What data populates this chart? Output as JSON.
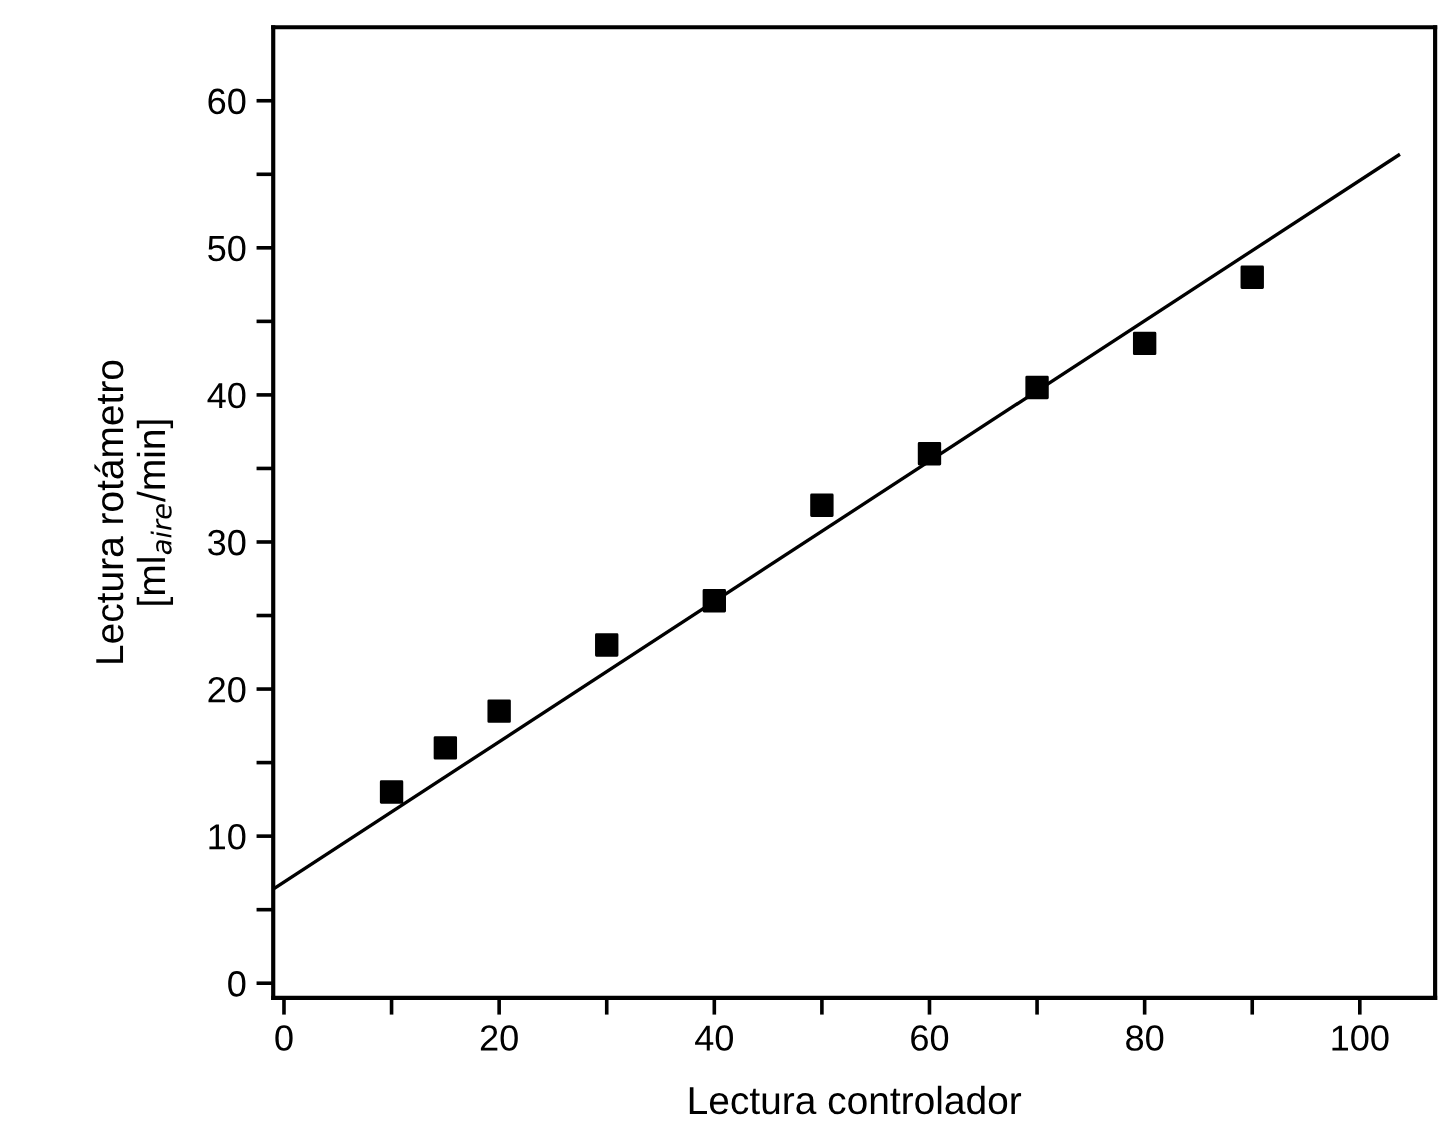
{
  "chart_data": {
    "type": "scatter",
    "xlabel": "Lectura controlador",
    "ylabel": "Lectura rotámetro\n[ml$_{aire}$/min]",
    "xlim": [
      -1,
      107
    ],
    "ylim": [
      -1,
      65
    ],
    "xticks": [
      0,
      {
        "value": 10,
        "label": null
      },
      20,
      {
        "value": 30,
        "label": null
      },
      40,
      {
        "value": 50,
        "label": null
      },
      60,
      {
        "value": 70,
        "label": null
      },
      80,
      {
        "value": 90,
        "label": null
      },
      100
    ],
    "yticks": [
      0,
      {
        "value": 5,
        "label": null
      },
      10,
      {
        "value": 15,
        "label": null
      },
      20,
      {
        "value": 25,
        "label": null
      },
      30,
      {
        "value": 35,
        "label": null
      },
      40,
      {
        "value": 45,
        "label": null
      },
      50,
      {
        "value": 55,
        "label": null
      },
      60
    ],
    "grid": false,
    "series": [
      {
        "marker": "square",
        "color": "#000000",
        "x": [
          10,
          15,
          20,
          30,
          40,
          50,
          60,
          70,
          80,
          90
        ],
        "values": [
          13,
          16,
          18.5,
          23,
          26,
          32.5,
          36,
          40.5,
          43.5,
          48
        ]
      },
      {
        "type": "line",
        "color": "#000000",
        "x": [
          -1,
          103.6
        ],
        "values": [
          6.4,
          56.3
        ]
      }
    ]
  }
}
